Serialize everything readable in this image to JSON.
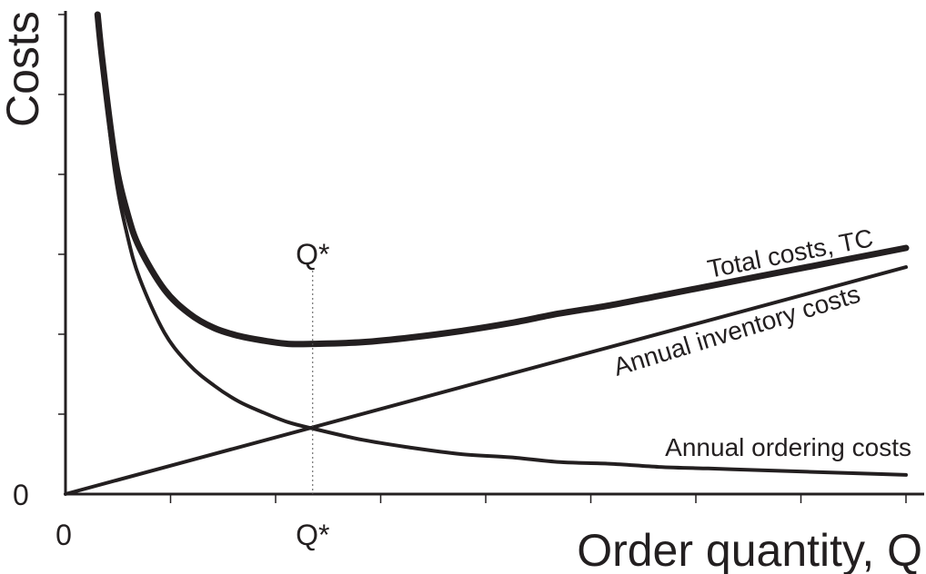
{
  "chart_data": {
    "type": "line",
    "title": "",
    "xlabel": "Order quantity, Q",
    "ylabel": "Costs",
    "x_tick_labels": {
      "origin": "0",
      "optimum": "Q*"
    },
    "y_tick_labels": {
      "origin": "0"
    },
    "optimum": {
      "label": "Q*",
      "x": 1.0
    },
    "xlim": [
      0,
      3.4
    ],
    "ylim": [
      0,
      3.0
    ],
    "grid": false,
    "legend": "none",
    "series": [
      {
        "name": "Total costs, TC",
        "color": "#231f20",
        "x": [
          0.13,
          0.15,
          0.2,
          0.25,
          0.3,
          0.4,
          0.5,
          0.6,
          0.7,
          0.8,
          0.9,
          1.0,
          1.2,
          1.4,
          1.6,
          1.8,
          2.0,
          2.2,
          2.4,
          2.6,
          2.8,
          3.0,
          3.2,
          3.4
        ],
        "y": [
          3.05,
          2.7,
          2.1,
          1.76,
          1.54,
          1.28,
          1.13,
          1.04,
          0.99,
          0.96,
          0.94,
          0.94,
          0.95,
          0.98,
          1.02,
          1.07,
          1.13,
          1.18,
          1.24,
          1.3,
          1.36,
          1.42,
          1.48,
          1.54
        ]
      },
      {
        "name": "Annual inventory costs",
        "color": "#231f20",
        "x": [
          0,
          3.4
        ],
        "y": [
          0,
          1.42
        ]
      },
      {
        "name": "Annual ordering costs",
        "color": "#231f20",
        "x": [
          0.13,
          0.15,
          0.2,
          0.25,
          0.3,
          0.4,
          0.5,
          0.6,
          0.7,
          0.8,
          0.9,
          1.0,
          1.2,
          1.4,
          1.6,
          1.8,
          2.0,
          2.2,
          2.4,
          2.6,
          2.8,
          3.0,
          3.2,
          3.4
        ],
        "y": [
          3.05,
          2.68,
          2.01,
          1.62,
          1.35,
          1.01,
          0.81,
          0.68,
          0.58,
          0.51,
          0.45,
          0.41,
          0.34,
          0.29,
          0.25,
          0.23,
          0.2,
          0.19,
          0.17,
          0.16,
          0.15,
          0.14,
          0.13,
          0.12
        ]
      }
    ]
  }
}
